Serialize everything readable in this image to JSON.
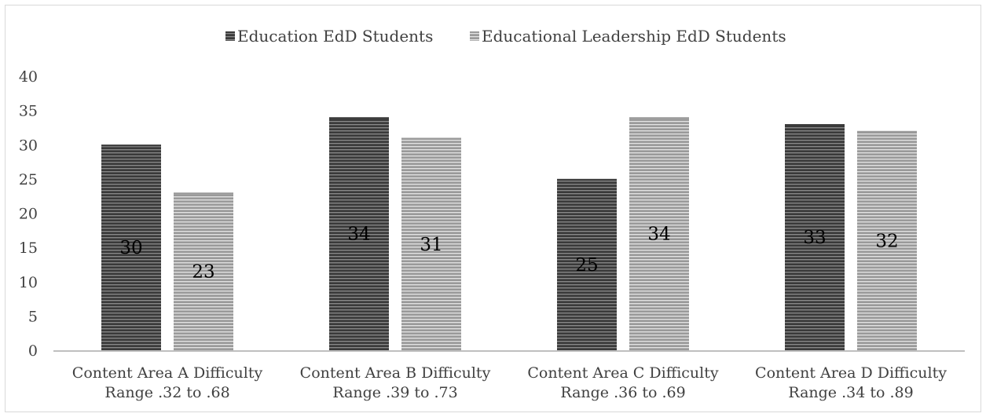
{
  "chart_data": {
    "type": "bar",
    "title": "",
    "xlabel": "",
    "ylabel": "",
    "ylim": [
      0,
      40
    ],
    "yticks": [
      0,
      5,
      10,
      15,
      20,
      25,
      30,
      35,
      40
    ],
    "grid": false,
    "legend_position": "top-center",
    "categories": [
      [
        "Content Area A Difficulty",
        "Range .32 to .68"
      ],
      [
        "Content Area B Difficulty",
        "Range .39 to .73"
      ],
      [
        "Content Area C Difficulty",
        "Range .36 to .69"
      ],
      [
        "Content Area D Difficulty",
        "Range .34 to .89"
      ]
    ],
    "series": [
      {
        "name": "Education EdD Students",
        "values": [
          30,
          34,
          25,
          33
        ],
        "color": "#3a3a3a",
        "stripe": "#8a8a8a"
      },
      {
        "name": "Educational Leadership EdD Students",
        "values": [
          23,
          31,
          34,
          32
        ],
        "color": "#9a9a9a",
        "stripe": "#e4e4e4"
      }
    ],
    "data_labels": true
  }
}
